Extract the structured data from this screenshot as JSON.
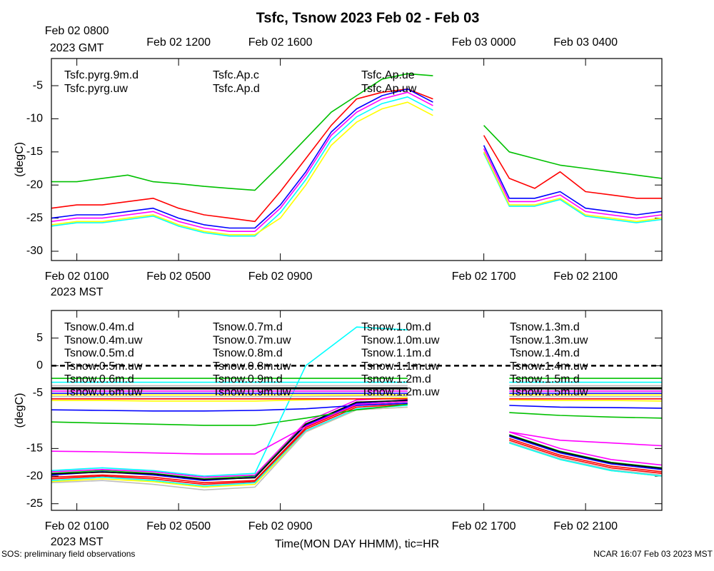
{
  "title": "Tsfc, Tsnow 2023 Feb 02 - Feb 03",
  "footer_left": "SOS: preliminary field observations",
  "footer_right": "NCAR 16:07 Feb 03 2023 MST",
  "chart_data": [
    {
      "type": "line",
      "ylabel": "(degC)",
      "ylim": [
        -31.4,
        -0.9
      ],
      "yticks": [
        -5,
        -10,
        -15,
        -20,
        -25,
        -30
      ],
      "xlim": [
        0,
        24
      ],
      "xticks": [
        {
          "value": 1,
          "label": "Feb 02 0100"
        },
        {
          "value": 5,
          "label": "Feb 02 0500"
        },
        {
          "value": 9,
          "label": "Feb 02 0900"
        },
        {
          "value": 17,
          "label": "Feb 02 1700"
        },
        {
          "value": 21,
          "label": "Feb 02 2100"
        }
      ],
      "x_note": "2023 MST",
      "x2ticks": [
        {
          "value": 1,
          "label": "Feb 02 0800"
        },
        {
          "value": 5,
          "label": "Feb 02 1200"
        },
        {
          "value": 9,
          "label": "Feb 02 1600"
        },
        {
          "value": 17,
          "label": "Feb 03 0000"
        },
        {
          "value": 21,
          "label": "Feb 03 0400"
        }
      ],
      "x2_note": "2023 GMT",
      "x": [
        0,
        1,
        2,
        3,
        4,
        5,
        6,
        7,
        8,
        9,
        10,
        11,
        12,
        13,
        14,
        15,
        16,
        17,
        18,
        19,
        20,
        21,
        22,
        23,
        24
      ],
      "series": [
        {
          "name": "Tsfc.pyrg.9m.d",
          "color": "#ff0000",
          "values": [
            -23.5,
            -23,
            -23,
            -22.5,
            -22,
            -23.5,
            -24.5,
            -25,
            -25.5,
            -21,
            -16,
            -11,
            -7,
            -6,
            -5.5,
            -7,
            null,
            -12.5,
            -19,
            -20.5,
            -18,
            -21,
            -21.5,
            -22,
            -22
          ]
        },
        {
          "name": "Tsfc.pyrg.uw",
          "color": "#00c000",
          "values": [
            -19.5,
            -19.5,
            -19,
            -18.5,
            -19.5,
            -19.8,
            -20.2,
            -20.5,
            -20.8,
            -17,
            -13,
            -9,
            -6.5,
            -4,
            -3.2,
            -3.5,
            null,
            -11,
            -15,
            -16,
            -17,
            -17.5,
            -18,
            -18.5,
            -19
          ]
        },
        {
          "name": "Tsfc.Ap.c",
          "color": "#0000ff",
          "values": [
            -25,
            -24.5,
            -24.5,
            -24,
            -23.5,
            -25,
            -26,
            -26.5,
            -26.5,
            -23,
            -18,
            -12,
            -8.5,
            -6.5,
            -5.5,
            -7.5,
            null,
            -14,
            -22,
            -22,
            -21,
            -23.5,
            -24,
            -24.5,
            -24
          ]
        },
        {
          "name": "Tsfc.Ap.d",
          "color": "#00ffff",
          "values": [
            -26.2,
            -25.7,
            -25.7,
            -25.2,
            -24.7,
            -26.2,
            -27.2,
            -27.7,
            -27.7,
            -24.2,
            -19.2,
            -13.2,
            -9.7,
            -7.7,
            -6.7,
            -8.7,
            null,
            -15.2,
            -23.2,
            -23.2,
            -22.2,
            -24.7,
            -25.2,
            -25.7,
            -25.2
          ]
        },
        {
          "name": "Tsfc.Ap.ue",
          "color": "#ff00ff",
          "values": [
            -25.5,
            -25,
            -25,
            -24.5,
            -24,
            -25.5,
            -26.5,
            -27,
            -27,
            -23.5,
            -18.5,
            -12.5,
            -9,
            -7,
            -6,
            -8,
            null,
            -14.5,
            -22.5,
            -22.5,
            -21.5,
            -24,
            -24.5,
            -25,
            -24.5
          ]
        },
        {
          "name": "Tsfc.Ap.uw",
          "color": "#ffff00",
          "values": [
            -26,
            -25.5,
            -25.5,
            -25,
            -24.5,
            -26,
            -27,
            -27.5,
            -27.5,
            -25,
            -20,
            -14,
            -10.5,
            -8.5,
            -7.5,
            -9.5,
            null,
            -15,
            -23,
            -23,
            -22,
            -24.5,
            -25,
            -25.5,
            -25
          ]
        }
      ]
    },
    {
      "type": "line",
      "ylabel": "(degC)",
      "ylim": [
        -26.2,
        10
      ],
      "yticks": [
        5,
        0,
        -5,
        -15,
        -20,
        -25
      ],
      "hline": 0,
      "xlim": [
        0,
        24
      ],
      "xticks": [
        {
          "value": 1,
          "label": "Feb 02 0100"
        },
        {
          "value": 5,
          "label": "Feb 02 0500"
        },
        {
          "value": 9,
          "label": "Feb 02 0900"
        },
        {
          "value": 17,
          "label": "Feb 02 1700"
        },
        {
          "value": 21,
          "label": "Feb 02 2100"
        }
      ],
      "x_note": "2023 MST",
      "xlabel": "Time(MON DAY HHMM), tic=HR",
      "x": [
        0,
        2,
        4,
        6,
        8,
        10,
        12,
        14,
        16,
        18,
        20,
        22,
        24
      ],
      "series": [
        {
          "name": "Tsnow.0.4m.d",
          "color": "#ff0000",
          "values": [
            -20.5,
            -20,
            -20.5,
            -21.5,
            -21,
            -11.5,
            -7.5,
            -7,
            null,
            -13.5,
            -16.5,
            -18.5,
            -19.5
          ]
        },
        {
          "name": "Tsnow.0.4m.uw",
          "color": "#00c000",
          "values": [
            -19.5,
            -19,
            -19.5,
            -20.5,
            -20,
            -10.5,
            -7,
            -6.5,
            null,
            -12.5,
            -15.5,
            -17.5,
            -18.5
          ]
        },
        {
          "name": "Tsnow.0.5m.d",
          "color": "#0000ff",
          "values": [
            -19.8,
            -19.2,
            -19.8,
            -20.8,
            -20.2,
            -10.8,
            -6.8,
            -6.2,
            null,
            -12.8,
            -15.8,
            -17.8,
            -18.8
          ]
        },
        {
          "name": "Tsnow.0.5m.uw",
          "color": "#00ffff",
          "values": [
            -20.8,
            -20.2,
            -20.8,
            -21.8,
            -21.2,
            -11.8,
            -7.8,
            -7.2,
            null,
            -14,
            -17,
            -19,
            -20
          ]
        },
        {
          "name": "Tsnow.0.6m.d",
          "color": "#ff00ff",
          "values": [
            -19.2,
            -18.8,
            -19.2,
            -20.2,
            -19.8,
            -10.2,
            -6.2,
            -5.8,
            null,
            -12,
            -15,
            -17,
            -18
          ]
        },
        {
          "name": "Tsnow.0.6m.uw",
          "color": "#ffff00",
          "values": [
            -21,
            -20.5,
            -21,
            -22,
            -21.5,
            -12,
            -8,
            -7.5,
            null,
            -14,
            -17,
            -19,
            -20
          ]
        },
        {
          "name": "Tsnow.0.7m.d",
          "color": "#bebebe",
          "values": [
            -21.2,
            -20.8,
            -21.5,
            -22.5,
            -22,
            -12,
            -8,
            -7.5,
            null,
            -13.8,
            -16.8,
            -18.8,
            -19.8
          ]
        },
        {
          "name": "Tsnow.0.7m.uw",
          "color": "#000000",
          "values": [
            -19.6,
            -19.3,
            -19.6,
            -20.6,
            -20.3,
            -10.6,
            -6.6,
            -6.3,
            null,
            -12.6,
            -15.6,
            -17.6,
            -18.6
          ]
        },
        {
          "name": "Tsnow.0.8m.d",
          "color": "#ff0000",
          "values": [
            -20.2,
            -19.8,
            -20.2,
            -21.2,
            -20.8,
            -11.2,
            -7.2,
            -6.8,
            null,
            -13.2,
            -16.2,
            -18.2,
            -19.2
          ]
        },
        {
          "name": "Tsnow.0.8m.uw",
          "color": "#00c000",
          "values": [
            -10.2,
            -10.4,
            -10.6,
            -10.8,
            -10.8,
            -9.5,
            -8,
            -7,
            null,
            -8.5,
            -9,
            -9.3,
            -9.5
          ]
        },
        {
          "name": "Tsnow.0.9m.d",
          "color": "#0000ff",
          "values": [
            -8,
            -8.1,
            -8.2,
            -8.2,
            -8.1,
            -7.8,
            -7.2,
            -6.8,
            null,
            -7.2,
            -7.5,
            -7.6,
            -7.7
          ]
        },
        {
          "name": "Tsnow.0.9m.uw",
          "color": "#00ffff",
          "values": [
            -19,
            -18.5,
            -19,
            -20,
            -19.5,
            0,
            7,
            6.5,
            null,
            -14,
            -17,
            -19,
            -20
          ]
        },
        {
          "name": "Tsnow.1.0m.d",
          "color": "#ff00ff",
          "values": [
            -15.5,
            -15.6,
            -15.8,
            -16,
            -16,
            -11,
            -7,
            -6.5,
            null,
            -12,
            -13.5,
            -14,
            -14.5
          ]
        },
        {
          "name": "Tsnow.1.0m.uw",
          "color": "#ffff00",
          "values": [
            -6.3,
            -6.3,
            -6.4,
            -6.4,
            -6.4,
            -6.2,
            -6,
            -5.8,
            null,
            -6.2,
            -6.3,
            -6.3,
            -6.4
          ]
        },
        {
          "name": "Tsnow.1.1m.d",
          "color": "#bebebe",
          "values": [
            -5.6,
            -5.6,
            -5.6,
            -5.6,
            -5.6,
            -5.6,
            -5.5,
            -5.5,
            null,
            -5.6,
            -5.6,
            -5.6,
            -5.6
          ]
        },
        {
          "name": "Tsnow.1.1m.uw",
          "color": "#000000",
          "values": [
            -4.2,
            -4.2,
            -4.2,
            -4.2,
            -4.2,
            -4.2,
            -4.2,
            -4.2,
            null,
            -4.2,
            -4.2,
            -4.2,
            -4.2
          ]
        },
        {
          "name": "Tsnow.1.2m.d",
          "color": "#ff0000",
          "values": [
            -6,
            -6,
            -6,
            -6,
            -6,
            -6,
            -6,
            -6,
            null,
            -6,
            -6,
            -6,
            -6
          ]
        },
        {
          "name": "Tsnow.1.2m.uw",
          "color": "#00c000",
          "values": [
            -2.3,
            -2.3,
            -2.3,
            -2.3,
            -2.3,
            -2.3,
            -2.3,
            -2.3,
            null,
            -2.3,
            -2.3,
            -2.3,
            -2.3
          ]
        },
        {
          "name": "Tsnow.1.3m.d",
          "color": "#0000ff",
          "values": [
            -5,
            -5,
            -5,
            -5,
            -5,
            -5,
            -5,
            -5,
            null,
            -5,
            -5,
            -5,
            -5
          ]
        },
        {
          "name": "Tsnow.1.3m.uw",
          "color": "#00ffff",
          "values": [
            -3,
            -3,
            -3,
            -3,
            -3,
            -3,
            -3,
            -3,
            null,
            -3,
            -3,
            -3,
            -3
          ]
        },
        {
          "name": "Tsnow.1.4m.d",
          "color": "#ff00ff",
          "values": [
            -4.6,
            -4.6,
            -4.6,
            -4.6,
            -4.6,
            -4.6,
            -4.6,
            -4.6,
            null,
            -4.6,
            -4.6,
            -4.6,
            -4.6
          ]
        },
        {
          "name": "Tsnow.1.4m.uw",
          "color": "#ffff00",
          "values": [
            -5.3,
            -5.3,
            -5.3,
            -5.3,
            -5.3,
            -5.3,
            -5.3,
            -5.3,
            null,
            -5.3,
            -5.3,
            -5.3,
            -5.3
          ]
        },
        {
          "name": "Tsnow.1.5m.d",
          "color": "#bebebe",
          "values": [
            -3.6,
            -3.6,
            -3.6,
            -3.6,
            -3.6,
            -3.6,
            -3.6,
            -3.6,
            null,
            -3.6,
            -3.6,
            -3.6,
            -3.6
          ]
        },
        {
          "name": "Tsnow.1.5m.uw",
          "color": "#000000",
          "values": [
            -4,
            -4,
            -4,
            -4,
            -4,
            -4,
            -4,
            -4,
            null,
            -4,
            -4,
            -4,
            -4
          ]
        }
      ]
    }
  ]
}
